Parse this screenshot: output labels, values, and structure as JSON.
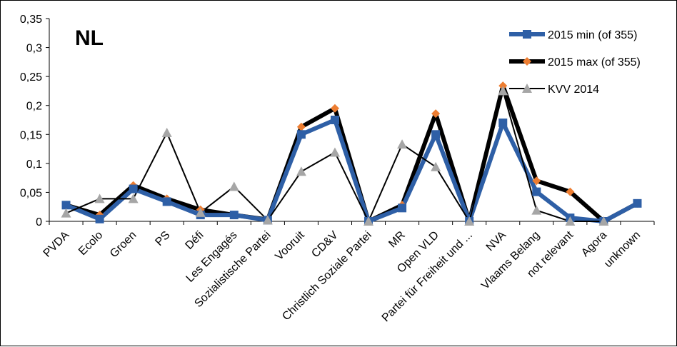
{
  "chart_data": {
    "type": "line",
    "title": "NL",
    "categories": [
      "PVDA",
      "Ecolo",
      "Groen",
      "PS",
      "Défi",
      "Les Engagés",
      "Sozialistische Partei",
      "Vooruit",
      "CD&V",
      "Christlich Soziale Partei",
      "MR",
      "Open VLD",
      "Partei für Freiheit und ...",
      "NVA",
      "Vlaams Belang",
      "not relevant",
      "Agora",
      "unknown"
    ],
    "y_tick_labels": [
      "0",
      "0,05",
      "0,1",
      "0,15",
      "0,2",
      "0,25",
      "0,3",
      "0,35"
    ],
    "ylim": [
      0,
      0.35
    ],
    "grid": false,
    "legend_position": "top-right",
    "series": [
      {
        "name": "2015 min (of 355)",
        "color": "#2e5fa6",
        "marker": "square",
        "values": [
          0.028,
          0.004,
          0.056,
          0.034,
          0.011,
          0.011,
          0.002,
          0.15,
          0.175,
          0.0,
          0.023,
          0.15,
          0.0,
          0.17,
          0.051,
          0.006,
          0.0,
          0.031
        ]
      },
      {
        "name": "2015 max (of 355)",
        "color": "#000000",
        "marker_color": "#ed7d31",
        "marker": "diamond",
        "values": [
          0.028,
          0.011,
          0.062,
          0.039,
          0.02,
          0.011,
          0.003,
          0.163,
          0.195,
          0.0,
          0.028,
          0.186,
          0.0,
          0.234,
          0.07,
          0.051,
          0.0,
          0.031
        ]
      },
      {
        "name": "KVV 2014",
        "color": "#000000",
        "marker_color": "#a6a6a6",
        "marker": "triangle",
        "values": [
          0.014,
          0.039,
          0.039,
          0.153,
          0.015,
          0.06,
          0.002,
          0.086,
          0.119,
          0.0,
          0.133,
          0.094,
          0.0,
          0.225,
          0.019,
          0.0,
          0.0,
          null
        ]
      }
    ]
  }
}
